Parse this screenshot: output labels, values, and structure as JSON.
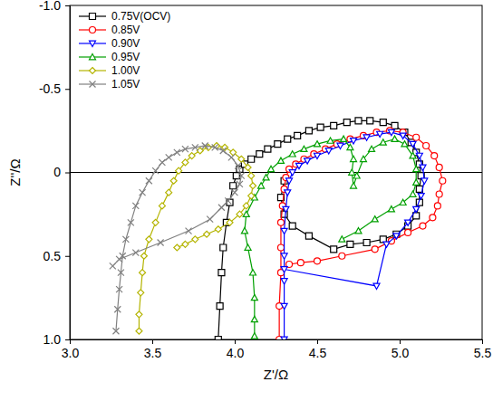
{
  "chart_data": {
    "type": "line",
    "x_label": "Z'/Ω",
    "y_label": "Z''/Ω",
    "xlim": [
      3.0,
      5.5
    ],
    "xticks": [
      {
        "value": 3,
        "label": "3.0"
      },
      3.5,
      {
        "value": 4,
        "label": "4.0"
      },
      4.5,
      {
        "value": 5,
        "label": "5.0"
      },
      5.5
    ],
    "ylim": [
      1.0,
      -1.0
    ],
    "yticks": [
      {
        "value": -1,
        "label": "-1.0"
      },
      -0.5,
      0,
      0.5,
      {
        "value": 1,
        "label": "1.0"
      }
    ],
    "legend": "upper left",
    "grid": false,
    "series": [
      {
        "name": "0.75V(OCV)",
        "color": "#000000",
        "marker": "square",
        "x": [
          3.9,
          3.91,
          3.92,
          3.93,
          3.95,
          3.97,
          3.99,
          4.01,
          4.03,
          4.06,
          4.1,
          4.15,
          4.2,
          4.26,
          4.32,
          4.38,
          4.45,
          4.52,
          4.6,
          4.68,
          4.75,
          4.82,
          4.9,
          4.97,
          5.03,
          5.07,
          5.1,
          5.12,
          5.13,
          5.12,
          5.12,
          5.1,
          5.05,
          4.98,
          4.9,
          4.8,
          4.7,
          4.6,
          4.45,
          4.35,
          4.3,
          4.28,
          4.3
        ],
        "values": [
          1.0,
          0.8,
          0.6,
          0.45,
          0.3,
          0.18,
          0.08,
          0.02,
          -0.02,
          -0.05,
          -0.08,
          -0.11,
          -0.14,
          -0.17,
          -0.2,
          -0.22,
          -0.25,
          -0.27,
          -0.28,
          -0.3,
          -0.31,
          -0.31,
          -0.3,
          -0.28,
          -0.24,
          -0.18,
          -0.12,
          -0.05,
          0.02,
          0.1,
          0.18,
          0.26,
          0.32,
          0.37,
          0.4,
          0.42,
          0.43,
          0.46,
          0.38,
          0.32,
          0.25,
          0.15,
          0.05
        ]
      },
      {
        "name": "0.85V",
        "color": "#ff0000",
        "marker": "circle",
        "x": [
          4.27,
          4.27,
          4.28,
          4.28,
          4.28,
          4.29,
          4.3,
          4.31,
          4.33,
          4.37,
          4.42,
          4.48,
          4.55,
          4.62,
          4.7,
          4.78,
          4.86,
          4.94,
          5.02,
          5.1,
          5.16,
          5.21,
          5.24,
          5.26,
          5.24,
          5.23,
          5.2,
          5.14,
          5.05,
          4.95,
          4.85,
          4.65,
          4.5,
          4.4,
          4.33
        ],
        "values": [
          1.0,
          0.8,
          0.6,
          0.45,
          0.3,
          0.2,
          0.1,
          0.03,
          -0.02,
          -0.05,
          -0.08,
          -0.11,
          -0.14,
          -0.17,
          -0.2,
          -0.22,
          -0.24,
          -0.25,
          -0.24,
          -0.21,
          -0.16,
          -0.1,
          -0.03,
          0.05,
          0.13,
          0.2,
          0.27,
          0.32,
          0.36,
          0.41,
          0.46,
          0.5,
          0.53,
          0.54,
          0.55
        ]
      },
      {
        "name": "0.90V",
        "color": "#0000ff",
        "marker": "triangle-down",
        "x": [
          4.3,
          4.3,
          4.3,
          4.3,
          4.3,
          4.31,
          4.32,
          4.33,
          4.35,
          4.39,
          4.44,
          4.5,
          4.57,
          4.64,
          4.72,
          4.8,
          4.88,
          4.95,
          5.02,
          5.08,
          5.12,
          5.14,
          5.15,
          5.13,
          5.1,
          5.05,
          4.98,
          4.92,
          4.86,
          4.3
        ],
        "values": [
          1.0,
          0.8,
          0.65,
          0.5,
          0.35,
          0.22,
          0.12,
          0.05,
          0.0,
          -0.04,
          -0.07,
          -0.1,
          -0.13,
          -0.16,
          -0.19,
          -0.21,
          -0.23,
          -0.24,
          -0.22,
          -0.17,
          -0.1,
          -0.03,
          0.05,
          0.14,
          0.22,
          0.3,
          0.38,
          0.43,
          0.68,
          0.58
        ]
      },
      {
        "name": "0.95V",
        "color": "#00a000",
        "marker": "triangle-up",
        "x": [
          4.12,
          4.12,
          4.12,
          4.11,
          4.08,
          4.06,
          4.07,
          4.12,
          4.16,
          4.19,
          4.22,
          4.28,
          4.35,
          4.42,
          4.5,
          4.58,
          4.66,
          4.7,
          4.72,
          4.71,
          4.72,
          4.74,
          4.78,
          4.83,
          4.9,
          4.97,
          5.03,
          5.08,
          5.1,
          5.1,
          5.08,
          5.02,
          4.95,
          4.85,
          4.75,
          4.65
        ],
        "values": [
          0.98,
          0.88,
          0.75,
          0.6,
          0.45,
          0.35,
          0.25,
          0.15,
          0.08,
          0.03,
          -0.02,
          -0.07,
          -0.11,
          -0.14,
          -0.17,
          -0.19,
          -0.2,
          -0.15,
          -0.08,
          0.0,
          0.08,
          0.02,
          -0.08,
          -0.14,
          -0.18,
          -0.2,
          -0.17,
          -0.1,
          -0.02,
          0.06,
          0.13,
          0.18,
          0.22,
          0.28,
          0.35,
          0.4
        ]
      },
      {
        "name": "1.00V",
        "color": "#b4b400",
        "marker": "diamond",
        "x": [
          3.42,
          3.42,
          3.43,
          3.44,
          3.45,
          3.48,
          3.52,
          3.56,
          3.6,
          3.63,
          3.66,
          3.7,
          3.74,
          3.79,
          3.84,
          3.89,
          3.94,
          3.99,
          4.04,
          4.08,
          4.1,
          4.11,
          4.1,
          4.07,
          4.03,
          3.97,
          3.9,
          3.83,
          3.76,
          3.7,
          3.65
        ],
        "values": [
          0.95,
          0.85,
          0.72,
          0.6,
          0.5,
          0.4,
          0.3,
          0.2,
          0.12,
          0.05,
          -0.01,
          -0.06,
          -0.1,
          -0.13,
          -0.15,
          -0.16,
          -0.15,
          -0.12,
          -0.08,
          -0.03,
          0.02,
          0.08,
          0.14,
          0.2,
          0.25,
          0.3,
          0.34,
          0.37,
          0.4,
          0.43,
          0.45
        ]
      },
      {
        "name": "1.05V",
        "color": "#808080",
        "marker": "x",
        "x": [
          3.28,
          3.29,
          3.3,
          3.31,
          3.32,
          3.34,
          3.37,
          3.4,
          3.44,
          3.48,
          3.52,
          3.56,
          3.6,
          3.65,
          3.7,
          3.76,
          3.82,
          3.88,
          3.93,
          3.98,
          4.02,
          4.04,
          4.03,
          4.0,
          3.96,
          3.92,
          3.85,
          3.72,
          3.55,
          3.4,
          3.3,
          3.26
        ],
        "values": [
          0.95,
          0.82,
          0.7,
          0.6,
          0.5,
          0.4,
          0.3,
          0.2,
          0.12,
          0.05,
          -0.01,
          -0.06,
          -0.09,
          -0.12,
          -0.14,
          -0.15,
          -0.16,
          -0.15,
          -0.13,
          -0.09,
          -0.04,
          0.02,
          0.07,
          0.12,
          0.17,
          0.21,
          0.28,
          0.35,
          0.42,
          0.48,
          0.52,
          0.56
        ]
      }
    ]
  }
}
